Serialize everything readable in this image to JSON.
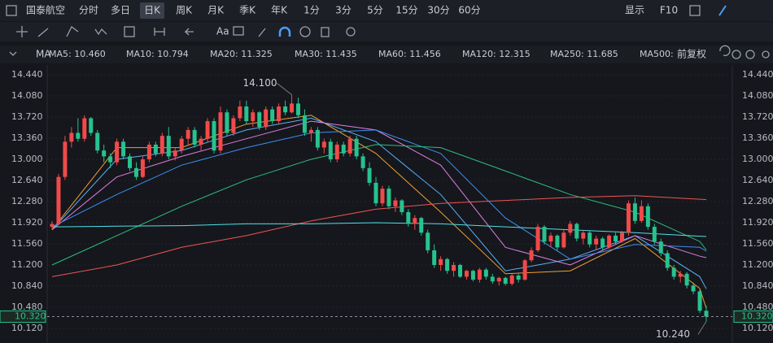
{
  "ui": {
    "tabs": [
      "国泰航空",
      "分时",
      "多日",
      "日K",
      "周K",
      "月K",
      "季K",
      "年K",
      "1分",
      "3分",
      "5分",
      "15分",
      "30分",
      "60分"
    ],
    "active_tab": 3,
    "right_tabs": [
      "显示",
      "F10"
    ],
    "legend_head": "MA",
    "adjust": "前复权"
  },
  "chart_data": {
    "type": "candlestick",
    "ylim": [
      10.12,
      14.44
    ],
    "yticks": [
      {
        "value": 10.12,
        "label": "10.120"
      },
      {
        "value": 10.48,
        "label": "10.480"
      },
      {
        "value": 10.84,
        "label": "10.840"
      },
      {
        "value": 11.2,
        "label": "11.200"
      },
      {
        "value": 11.56,
        "label": "11.560"
      },
      {
        "value": 11.92,
        "label": "11.920"
      },
      {
        "value": 12.28,
        "label": "12.280"
      },
      {
        "value": 12.64,
        "label": "12.640"
      },
      {
        "value": 13.0,
        "label": "13.000"
      },
      {
        "value": 13.36,
        "label": "13.360"
      },
      {
        "value": 13.72,
        "label": "13.720"
      },
      {
        "value": 14.08,
        "label": "14.080"
      },
      {
        "value": 14.44,
        "label": "14.440"
      }
    ],
    "up_color": "#f04a4a",
    "down_color": "#27c28e",
    "last_price": {
      "value": 10.32,
      "label": "10.320"
    },
    "annotations": [
      {
        "value": 14.1,
        "label": "14.100",
        "candle": 37
      },
      {
        "value": 10.24,
        "label": "10.240",
        "candle": 101
      }
    ],
    "candles": [
      [
        11.85,
        11.95,
        11.8,
        11.9
      ],
      [
        11.9,
        12.75,
        11.88,
        12.7
      ],
      [
        12.7,
        13.4,
        12.65,
        13.3
      ],
      [
        13.3,
        13.55,
        13.2,
        13.45
      ],
      [
        13.45,
        13.7,
        13.3,
        13.35
      ],
      [
        13.35,
        13.75,
        13.3,
        13.7
      ],
      [
        13.7,
        13.72,
        13.4,
        13.45
      ],
      [
        13.45,
        13.5,
        13.1,
        13.15
      ],
      [
        13.15,
        13.25,
        12.95,
        13.05
      ],
      [
        13.05,
        13.1,
        12.85,
        12.95
      ],
      [
        12.95,
        13.35,
        12.9,
        13.3
      ],
      [
        13.3,
        13.35,
        13.0,
        13.05
      ],
      [
        13.05,
        13.1,
        12.8,
        12.85
      ],
      [
        12.85,
        12.95,
        12.65,
        12.7
      ],
      [
        12.7,
        13.05,
        12.68,
        13.0
      ],
      [
        13.0,
        13.3,
        12.95,
        13.25
      ],
      [
        13.25,
        13.3,
        13.05,
        13.1
      ],
      [
        13.1,
        13.45,
        13.05,
        13.4
      ],
      [
        13.4,
        13.55,
        13.0,
        13.05
      ],
      [
        13.05,
        13.2,
        12.98,
        13.15
      ],
      [
        13.15,
        13.4,
        13.1,
        13.35
      ],
      [
        13.35,
        13.55,
        13.25,
        13.5
      ],
      [
        13.5,
        13.55,
        13.2,
        13.25
      ],
      [
        13.25,
        13.4,
        13.15,
        13.35
      ],
      [
        13.35,
        13.7,
        13.3,
        13.65
      ],
      [
        13.65,
        13.7,
        13.1,
        13.15
      ],
      [
        13.15,
        13.9,
        13.1,
        13.8
      ],
      [
        13.8,
        13.85,
        13.4,
        13.45
      ],
      [
        13.45,
        13.75,
        13.4,
        13.7
      ],
      [
        13.7,
        14.0,
        13.65,
        13.9
      ],
      [
        13.9,
        14.0,
        13.6,
        13.65
      ],
      [
        13.65,
        13.85,
        13.55,
        13.8
      ],
      [
        13.8,
        13.82,
        13.5,
        13.55
      ],
      [
        13.55,
        13.9,
        13.5,
        13.85
      ],
      [
        13.85,
        13.9,
        13.6,
        13.65
      ],
      [
        13.65,
        13.95,
        13.6,
        13.9
      ],
      [
        13.9,
        14.0,
        13.75,
        13.8
      ],
      [
        13.8,
        14.1,
        13.78,
        13.95
      ],
      [
        13.95,
        14.05,
        13.7,
        13.75
      ],
      [
        13.75,
        13.85,
        13.4,
        13.45
      ],
      [
        13.45,
        13.55,
        13.3,
        13.5
      ],
      [
        13.5,
        13.55,
        13.15,
        13.2
      ],
      [
        13.2,
        13.35,
        13.1,
        13.3
      ],
      [
        13.3,
        13.35,
        12.95,
        13.0
      ],
      [
        13.0,
        13.3,
        12.95,
        13.25
      ],
      [
        13.25,
        13.3,
        13.05,
        13.1
      ],
      [
        13.1,
        13.4,
        13.05,
        13.35
      ],
      [
        13.35,
        13.4,
        13.0,
        13.05
      ],
      [
        13.05,
        13.1,
        12.8,
        12.85
      ],
      [
        12.85,
        12.95,
        12.55,
        12.6
      ],
      [
        12.6,
        12.7,
        12.2,
        12.25
      ],
      [
        12.25,
        12.55,
        12.2,
        12.5
      ],
      [
        12.5,
        12.55,
        12.15,
        12.2
      ],
      [
        12.2,
        12.35,
        12.1,
        12.3
      ],
      [
        12.3,
        12.32,
        12.05,
        12.1
      ],
      [
        12.1,
        12.15,
        11.85,
        11.9
      ],
      [
        11.9,
        12.05,
        11.8,
        12.0
      ],
      [
        12.0,
        12.02,
        11.7,
        11.75
      ],
      [
        11.75,
        11.8,
        11.4,
        11.45
      ],
      [
        11.45,
        11.55,
        11.15,
        11.2
      ],
      [
        11.2,
        11.35,
        11.1,
        11.3
      ],
      [
        11.3,
        11.32,
        11.05,
        11.1
      ],
      [
        11.1,
        11.25,
        11.0,
        11.2
      ],
      [
        11.2,
        11.22,
        10.98,
        11.0
      ],
      [
        11.0,
        11.12,
        10.95,
        11.1
      ],
      [
        11.1,
        11.12,
        10.92,
        10.95
      ],
      [
        10.95,
        11.15,
        10.9,
        11.12
      ],
      [
        11.12,
        11.15,
        10.95,
        11.0
      ],
      [
        11.0,
        11.05,
        10.88,
        10.92
      ],
      [
        10.92,
        11.0,
        10.85,
        10.98
      ],
      [
        10.98,
        11.0,
        10.85,
        10.88
      ],
      [
        10.88,
        11.05,
        10.85,
        11.02
      ],
      [
        11.02,
        11.05,
        10.9,
        10.95
      ],
      [
        10.95,
        11.3,
        10.93,
        11.28
      ],
      [
        11.28,
        11.5,
        11.25,
        11.45
      ],
      [
        11.45,
        11.9,
        11.42,
        11.85
      ],
      [
        11.85,
        11.88,
        11.55,
        11.6
      ],
      [
        11.6,
        11.75,
        11.5,
        11.7
      ],
      [
        11.7,
        11.72,
        11.45,
        11.5
      ],
      [
        11.5,
        11.8,
        11.48,
        11.75
      ],
      [
        11.75,
        11.95,
        11.7,
        11.9
      ],
      [
        11.9,
        11.92,
        11.6,
        11.65
      ],
      [
        11.65,
        11.8,
        11.55,
        11.75
      ],
      [
        11.75,
        11.78,
        11.5,
        11.55
      ],
      [
        11.55,
        11.7,
        11.45,
        11.65
      ],
      [
        11.65,
        11.68,
        11.45,
        11.5
      ],
      [
        11.5,
        11.72,
        11.48,
        11.7
      ],
      [
        11.7,
        11.75,
        11.55,
        11.6
      ],
      [
        11.6,
        11.78,
        11.58,
        11.75
      ],
      [
        11.75,
        12.3,
        11.7,
        12.25
      ],
      [
        12.25,
        12.35,
        11.9,
        11.95
      ],
      [
        11.95,
        12.3,
        11.92,
        12.2
      ],
      [
        12.2,
        12.25,
        11.8,
        11.85
      ],
      [
        11.85,
        11.9,
        11.55,
        11.6
      ],
      [
        11.6,
        11.65,
        11.35,
        11.4
      ],
      [
        11.4,
        11.45,
        11.1,
        11.15
      ],
      [
        11.15,
        11.2,
        10.95,
        11.0
      ],
      [
        11.0,
        11.1,
        10.9,
        11.05
      ],
      [
        11.05,
        11.08,
        10.8,
        10.85
      ],
      [
        10.85,
        10.9,
        10.7,
        10.75
      ],
      [
        10.75,
        10.78,
        10.38,
        10.42
      ],
      [
        10.42,
        10.5,
        10.24,
        10.32
      ]
    ],
    "series": [
      {
        "name": "MA5",
        "legend": "MA5: 10.460",
        "color": "#f0a030",
        "x": [
          0,
          10,
          20,
          30,
          40,
          50,
          60,
          70,
          80,
          90,
          100,
          101
        ],
        "values": [
          11.8,
          13.2,
          13.2,
          13.6,
          13.75,
          13.1,
          12.1,
          11.05,
          11.1,
          11.65,
          10.8,
          10.46
        ]
      },
      {
        "name": "MA10",
        "legend": "MA10: 10.794",
        "color": "#5ab0f5",
        "x": [
          0,
          10,
          20,
          30,
          40,
          50,
          60,
          70,
          80,
          90,
          100,
          101
        ],
        "values": [
          11.8,
          13.0,
          13.15,
          13.5,
          13.7,
          13.3,
          12.4,
          11.1,
          11.3,
          11.7,
          11.0,
          10.794
        ]
      },
      {
        "name": "MA20",
        "legend": "MA20: 11.325",
        "color": "#e07ee0",
        "x": [
          0,
          10,
          20,
          30,
          40,
          50,
          60,
          70,
          80,
          90,
          100,
          101
        ],
        "values": [
          11.8,
          12.7,
          13.05,
          13.35,
          13.65,
          13.5,
          12.9,
          11.5,
          11.2,
          11.7,
          11.35,
          11.325
        ]
      },
      {
        "name": "MA30",
        "legend": "MA30: 11.435",
        "color": "#3f8ef0",
        "x": [
          0,
          10,
          20,
          30,
          40,
          50,
          60,
          70,
          80,
          90,
          100,
          101
        ],
        "values": [
          11.85,
          12.4,
          12.9,
          13.2,
          13.45,
          13.5,
          13.1,
          12.0,
          11.3,
          11.55,
          11.5,
          11.435
        ]
      },
      {
        "name": "MA60",
        "legend": "MA60: 11.456",
        "color": "#2dbf7a",
        "x": [
          0,
          10,
          20,
          30,
          40,
          50,
          60,
          70,
          80,
          90,
          100,
          101
        ],
        "values": [
          11.2,
          11.7,
          12.2,
          12.65,
          13.0,
          13.25,
          13.2,
          12.8,
          12.4,
          12.1,
          11.6,
          11.456
        ]
      },
      {
        "name": "MA120",
        "legend": "MA120: 12.315",
        "color": "#f05555",
        "x": [
          0,
          10,
          20,
          30,
          40,
          50,
          60,
          70,
          80,
          90,
          100,
          101
        ],
        "values": [
          11.0,
          11.2,
          11.5,
          11.7,
          11.95,
          12.15,
          12.25,
          12.3,
          12.35,
          12.38,
          12.32,
          12.315
        ]
      },
      {
        "name": "MA250",
        "legend": "MA250: 11.685",
        "color": "#4fe0ea",
        "x": [
          0,
          10,
          20,
          30,
          40,
          50,
          60,
          70,
          80,
          90,
          100,
          101
        ],
        "values": [
          11.85,
          11.86,
          11.87,
          11.9,
          11.9,
          11.92,
          11.9,
          11.85,
          11.8,
          11.75,
          11.69,
          11.685
        ]
      }
    ],
    "extra_legend": {
      "legend": "MA500:",
      "color": "#8a7a4a"
    }
  }
}
